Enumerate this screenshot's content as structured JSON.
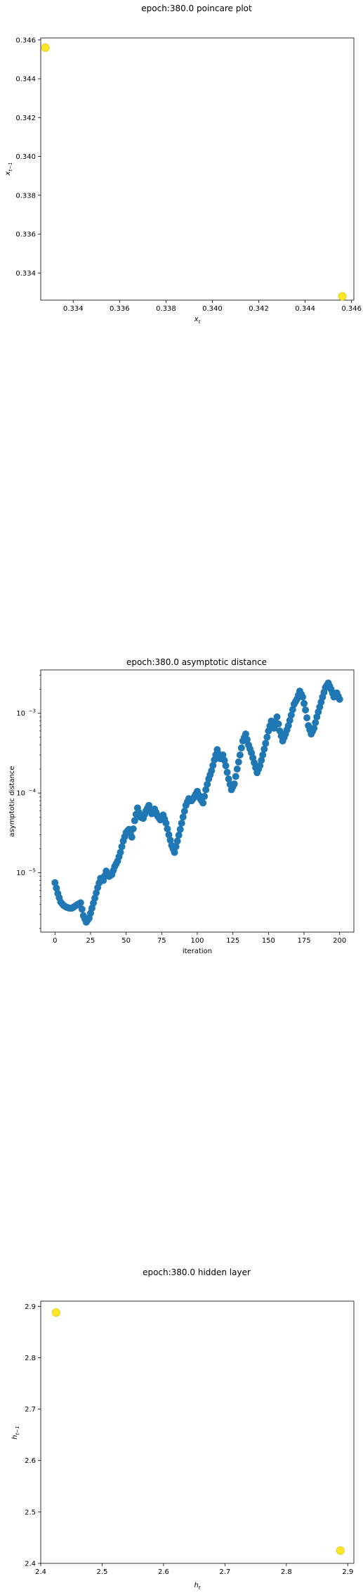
{
  "chart_data": [
    {
      "type": "scatter",
      "title": "epoch:380.0 poincare plot",
      "xlabel": "x_t",
      "ylabel": "x_{t-1}",
      "xlim": [
        0.3326,
        0.3461
      ],
      "ylim": [
        0.3326,
        0.3461
      ],
      "xticks": [
        {
          "v": 0.334,
          "label": "0.334"
        },
        {
          "v": 0.336,
          "label": "0.336"
        },
        {
          "v": 0.338,
          "label": "0.338"
        },
        {
          "v": 0.34,
          "label": "0.340"
        },
        {
          "v": 0.342,
          "label": "0.342"
        },
        {
          "v": 0.344,
          "label": "0.344"
        },
        {
          "v": 0.346,
          "label": "0.346"
        }
      ],
      "yticks": [
        {
          "v": 0.334,
          "label": "0.334"
        },
        {
          "v": 0.336,
          "label": "0.336"
        },
        {
          "v": 0.338,
          "label": "0.338"
        },
        {
          "v": 0.34,
          "label": "0.340"
        },
        {
          "v": 0.342,
          "label": "0.342"
        },
        {
          "v": 0.344,
          "label": "0.344"
        },
        {
          "v": 0.346,
          "label": "0.346"
        }
      ],
      "points": [
        [
          0.3328,
          0.3456
        ],
        [
          0.3456,
          0.3328
        ]
      ],
      "marker_color": "#fde725",
      "grid": false
    },
    {
      "type": "scatter",
      "title": "epoch:380.0 asymptotic distance",
      "xlabel": "iteration",
      "ylabel": "asymptotic distance",
      "yscale": "log",
      "xlim": [
        -10,
        210
      ],
      "ylim": [
        1.8e-06,
        0.0035
      ],
      "xticks": [
        {
          "v": 0,
          "label": "0"
        },
        {
          "v": 25,
          "label": "25"
        },
        {
          "v": 50,
          "label": "50"
        },
        {
          "v": 75,
          "label": "75"
        },
        {
          "v": 100,
          "label": "100"
        },
        {
          "v": 125,
          "label": "125"
        },
        {
          "v": 150,
          "label": "150"
        },
        {
          "v": 175,
          "label": "175"
        },
        {
          "v": 200,
          "label": "200"
        }
      ],
      "yticks": [
        {
          "v": 1e-05,
          "label": "10",
          "exp": "−5"
        },
        {
          "v": 0.0001,
          "label": "10",
          "exp": "−4"
        },
        {
          "v": 0.001,
          "label": "10",
          "exp": "−3"
        }
      ],
      "anchors": [
        [
          0,
          7.5e-06
        ],
        [
          2,
          5.5e-06
        ],
        [
          4,
          4.3e-06
        ],
        [
          6,
          3.9e-06
        ],
        [
          8,
          3.7e-06
        ],
        [
          10,
          3.6e-06
        ],
        [
          12,
          3.6e-06
        ],
        [
          14,
          3.8e-06
        ],
        [
          16,
          4e-06
        ],
        [
          18,
          4.2e-06
        ],
        [
          20,
          2.9e-06
        ],
        [
          22,
          2.4e-06
        ],
        [
          24,
          2.7e-06
        ],
        [
          26,
          3.6e-06
        ],
        [
          28,
          4.8e-06
        ],
        [
          30,
          6.5e-06
        ],
        [
          32,
          8.5e-06
        ],
        [
          34,
          8e-06
        ],
        [
          36,
          1.05e-05
        ],
        [
          38,
          9e-06
        ],
        [
          40,
          9.5e-06
        ],
        [
          42,
          1.2e-05
        ],
        [
          44,
          1.4e-05
        ],
        [
          46,
          1.8e-05
        ],
        [
          48,
          2.5e-05
        ],
        [
          50,
          3.2e-05
        ],
        [
          52,
          3.5e-05
        ],
        [
          54,
          2.8e-05
        ],
        [
          56,
          4.5e-05
        ],
        [
          58,
          6.5e-05
        ],
        [
          60,
          5e-05
        ],
        [
          62,
          4.8e-05
        ],
        [
          64,
          6e-05
        ],
        [
          66,
          7e-05
        ],
        [
          68,
          5.5e-05
        ],
        [
          70,
          6.3e-05
        ],
        [
          72,
          5.2e-05
        ],
        [
          74,
          4.6e-05
        ],
        [
          76,
          5.3e-05
        ],
        [
          78,
          4.2e-05
        ],
        [
          80,
          3e-05
        ],
        [
          82,
          2.2e-05
        ],
        [
          84,
          1.8e-05
        ],
        [
          86,
          2.5e-05
        ],
        [
          88,
          3.5e-05
        ],
        [
          90,
          5e-05
        ],
        [
          92,
          7e-05
        ],
        [
          94,
          8.5e-05
        ],
        [
          96,
          8e-05
        ],
        [
          98,
          9e-05
        ],
        [
          100,
          0.000105
        ],
        [
          102,
          8.5e-05
        ],
        [
          104,
          7.5e-05
        ],
        [
          106,
          0.00011
        ],
        [
          108,
          0.00015
        ],
        [
          110,
          0.00019
        ],
        [
          112,
          0.00026
        ],
        [
          114,
          0.00035
        ],
        [
          116,
          0.00027
        ],
        [
          118,
          0.0003
        ],
        [
          120,
          0.00022
        ],
        [
          122,
          0.00015
        ],
        [
          124,
          0.00011
        ],
        [
          126,
          0.00013
        ],
        [
          128,
          0.0002
        ],
        [
          130,
          0.0003
        ],
        [
          132,
          0.00045
        ],
        [
          134,
          0.00055
        ],
        [
          136,
          0.0004
        ],
        [
          138,
          0.00032
        ],
        [
          140,
          0.00024
        ],
        [
          142,
          0.00018
        ],
        [
          144,
          0.00022
        ],
        [
          146,
          0.0003
        ],
        [
          148,
          0.00042
        ],
        [
          150,
          0.0006
        ],
        [
          152,
          0.0008
        ],
        [
          154,
          0.00065
        ],
        [
          156,
          0.0009
        ],
        [
          158,
          0.0006
        ],
        [
          160,
          0.00045
        ],
        [
          162,
          0.00055
        ],
        [
          164,
          0.0007
        ],
        [
          166,
          0.00095
        ],
        [
          168,
          0.0013
        ],
        [
          170,
          0.0015
        ],
        [
          172,
          0.0019
        ],
        [
          174,
          0.0016
        ],
        [
          176,
          0.0011
        ],
        [
          178,
          0.0007
        ],
        [
          180,
          0.00055
        ],
        [
          182,
          0.00065
        ],
        [
          184,
          0.0009
        ],
        [
          186,
          0.0012
        ],
        [
          188,
          0.0016
        ],
        [
          190,
          0.0021
        ],
        [
          192,
          0.0024
        ],
        [
          194,
          0.002
        ],
        [
          196,
          0.0016
        ],
        [
          198,
          0.0018
        ],
        [
          200,
          0.0015
        ]
      ],
      "marker_color": "#1f77b4",
      "grid": false
    },
    {
      "type": "scatter",
      "title": "epoch:380.0 hidden layer",
      "xlabel": "h_t",
      "ylabel": "h_{t-1}",
      "xlim": [
        2.4,
        2.91
      ],
      "ylim": [
        2.4,
        2.91
      ],
      "xticks": [
        {
          "v": 2.4,
          "label": "2.4"
        },
        {
          "v": 2.5,
          "label": "2.5"
        },
        {
          "v": 2.6,
          "label": "2.6"
        },
        {
          "v": 2.7,
          "label": "2.7"
        },
        {
          "v": 2.8,
          "label": "2.8"
        },
        {
          "v": 2.9,
          "label": "2.9"
        }
      ],
      "yticks": [
        {
          "v": 2.4,
          "label": "2.4"
        },
        {
          "v": 2.5,
          "label": "2.5"
        },
        {
          "v": 2.6,
          "label": "2.6"
        },
        {
          "v": 2.7,
          "label": "2.7"
        },
        {
          "v": 2.8,
          "label": "2.8"
        },
        {
          "v": 2.9,
          "label": "2.9"
        }
      ],
      "points": [
        [
          2.425,
          2.888
        ],
        [
          2.888,
          2.425
        ]
      ],
      "marker_color": "#fde725",
      "grid": false
    }
  ]
}
